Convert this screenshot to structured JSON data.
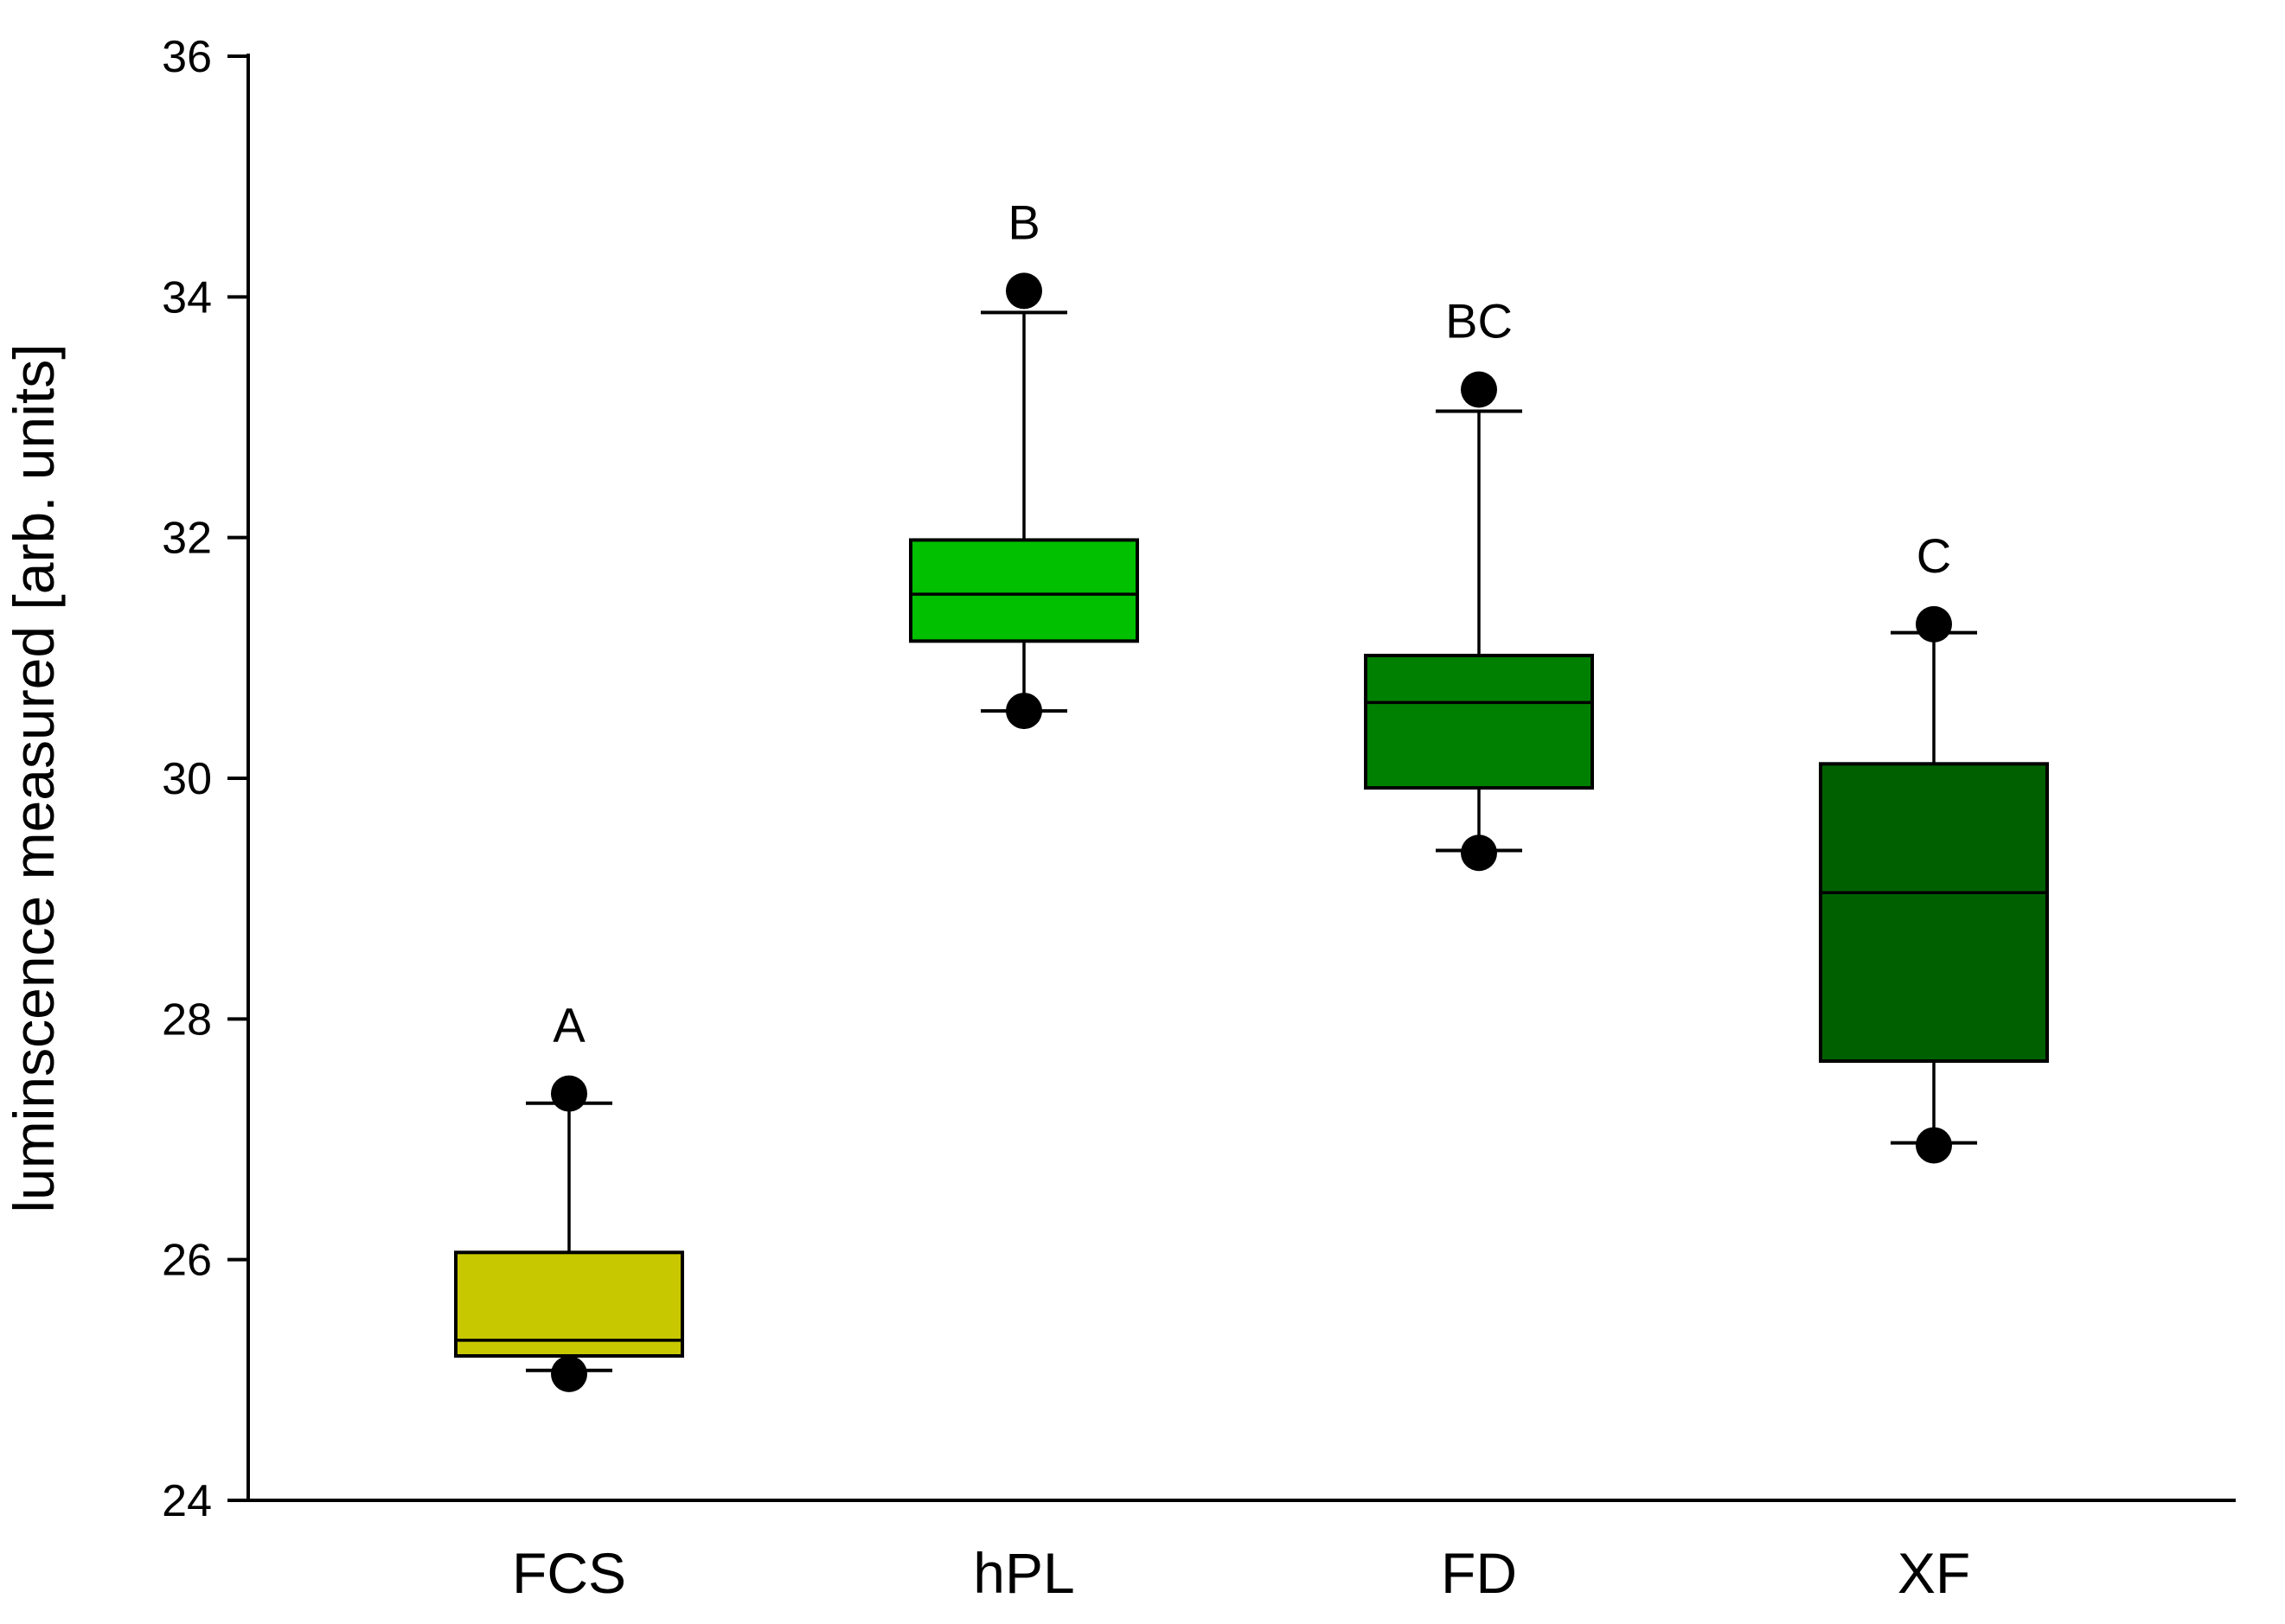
{
  "chart_data": {
    "type": "box",
    "title": "",
    "xlabel": "",
    "ylabel": "luminscence measured [arb. units]",
    "ylim": [
      24,
      36
    ],
    "yticks": [
      "24",
      "26",
      "28",
      "30",
      "32",
      "34",
      "36"
    ],
    "grid": false,
    "legend": "none",
    "categories": [
      "FCS",
      "hPL",
      "FD",
      "XF"
    ],
    "boxes": [
      {
        "category": "FCS",
        "min": 25.08,
        "q1": 25.2,
        "median": 25.33,
        "q3": 26.06,
        "max": 27.3,
        "outliers": [
          25.05,
          27.38
        ],
        "letter": "A",
        "color": "#c8c800"
      },
      {
        "category": "hPL",
        "min": 30.56,
        "q1": 31.14,
        "median": 31.53,
        "q3": 31.98,
        "max": 33.87,
        "outliers": [
          30.56,
          34.05
        ],
        "letter": "B",
        "color": "#00c000"
      },
      {
        "category": "FD",
        "min": 29.4,
        "q1": 29.92,
        "median": 30.63,
        "q3": 31.02,
        "max": 33.05,
        "outliers": [
          29.38,
          33.23
        ],
        "letter": "BC",
        "color": "#008000"
      },
      {
        "category": "XF",
        "min": 26.97,
        "q1": 27.65,
        "median": 29.05,
        "q3": 30.12,
        "max": 31.21,
        "outliers": [
          26.95,
          31.28
        ],
        "letter": "C",
        "color": "#006000"
      }
    ]
  }
}
